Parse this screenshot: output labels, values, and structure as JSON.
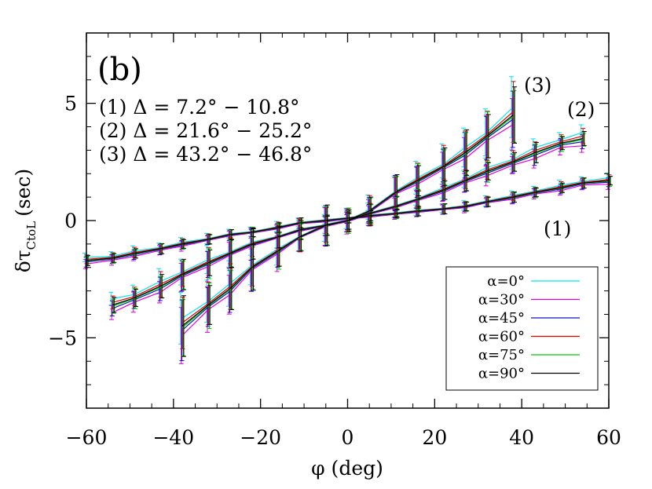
{
  "chart_data": {
    "type": "line",
    "panel_label": "(b)",
    "xlabel": "φ (deg)",
    "ylabel_main": "δτ",
    "ylabel_sub": "CtoL",
    "ylabel_unit": "(sec)",
    "xlim": [
      -60,
      60
    ],
    "ylim": [
      -8,
      8
    ],
    "xticks": [
      -60,
      -40,
      -20,
      0,
      20,
      40,
      60
    ],
    "xtick_labels": [
      "−60",
      "−40",
      "−20",
      "0",
      "20",
      "40",
      "60"
    ],
    "yticks": [
      -5,
      0,
      5
    ],
    "ytick_labels": [
      "−5",
      "0",
      "5"
    ],
    "grid": false,
    "legend_position": "lower-right",
    "annotations": [
      "(1) Δ  =  7.2°  −  10.8°",
      "(2) Δ  =  21.6°  −  25.2°",
      "(3) Δ  =  43.2°  −  46.8°"
    ],
    "group_labels": [
      "(1)",
      "(2)",
      "(3)"
    ],
    "groups": [
      {
        "label": "(1)",
        "x": [
          -60,
          -54,
          -49,
          -43,
          -38,
          -32,
          -27,
          -22,
          -16,
          -11,
          -5,
          0,
          5,
          11,
          16,
          22,
          27,
          32,
          38,
          43,
          49,
          54,
          60
        ],
        "y": [
          -1.7,
          -1.6,
          -1.4,
          -1.2,
          -1.0,
          -0.8,
          -0.6,
          -0.5,
          -0.3,
          -0.1,
          0.0,
          0.1,
          0.2,
          0.3,
          0.4,
          0.5,
          0.6,
          0.8,
          1.0,
          1.2,
          1.4,
          1.6,
          1.7
        ],
        "err": [
          0.2,
          0.2,
          0.2,
          0.2,
          0.2,
          0.2,
          0.2,
          0.2,
          0.2,
          0.2,
          0.2,
          0.2,
          0.2,
          0.2,
          0.2,
          0.2,
          0.2,
          0.2,
          0.2,
          0.2,
          0.2,
          0.2,
          0.2
        ]
      },
      {
        "label": "(2)",
        "x": [
          -54,
          -49,
          -43,
          -38,
          -32,
          -27,
          -22,
          -16,
          -11,
          -5,
          0,
          5,
          11,
          16,
          22,
          27,
          32,
          38,
          43,
          49,
          54
        ],
        "y": [
          -3.6,
          -3.3,
          -2.8,
          -2.3,
          -1.8,
          -1.4,
          -1.0,
          -0.7,
          -0.4,
          -0.2,
          0.0,
          0.3,
          0.6,
          0.9,
          1.3,
          1.7,
          2.1,
          2.5,
          2.9,
          3.3,
          3.5
        ],
        "err": [
          0.3,
          0.4,
          0.5,
          0.6,
          0.6,
          0.6,
          0.6,
          0.5,
          0.4,
          0.4,
          0.4,
          0.4,
          0.4,
          0.4,
          0.4,
          0.4,
          0.4,
          0.4,
          0.4,
          0.3,
          0.3
        ]
      },
      {
        "label": "(3)",
        "x": [
          -38,
          -32,
          -27,
          -22,
          -16,
          -11,
          -5,
          0,
          5,
          11,
          16,
          22,
          27,
          32,
          38
        ],
        "y": [
          -4.5,
          -3.6,
          -2.9,
          -2.0,
          -1.3,
          -0.7,
          -0.2,
          0.0,
          0.4,
          1.2,
          1.7,
          2.3,
          2.9,
          3.6,
          4.5
        ],
        "err": [
          1.2,
          0.9,
          0.9,
          0.9,
          0.7,
          0.6,
          0.8,
          0.5,
          0.6,
          0.7,
          0.7,
          0.8,
          0.9,
          1.0,
          1.2
        ]
      }
    ],
    "series": [
      {
        "name": "α=0°",
        "color": "#00e5ee",
        "offset": 0.15
      },
      {
        "name": "α=30°",
        "color": "#e000e0",
        "offset": -0.18
      },
      {
        "name": "α=45°",
        "color": "#1010c8",
        "offset": -0.08
      },
      {
        "name": "α=60°",
        "color": "#e00000",
        "offset": 0.06
      },
      {
        "name": "α=75°",
        "color": "#00c800",
        "offset": -0.03
      },
      {
        "name": "α=90°",
        "color": "#000000",
        "offset": 0.0
      }
    ]
  }
}
